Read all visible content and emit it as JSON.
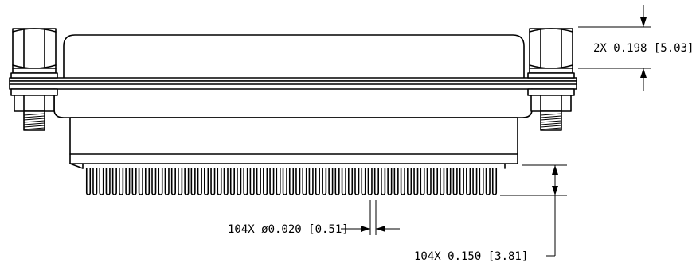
{
  "dimensions": {
    "hardware_height": {
      "text": "2X 0.198 [5.03]"
    },
    "pin_diameter": {
      "text": "104X ø0.020 [0.51]"
    },
    "pin_length": {
      "text": "104X 0.150 [3.81]"
    }
  },
  "pin_count_drawn": 63
}
